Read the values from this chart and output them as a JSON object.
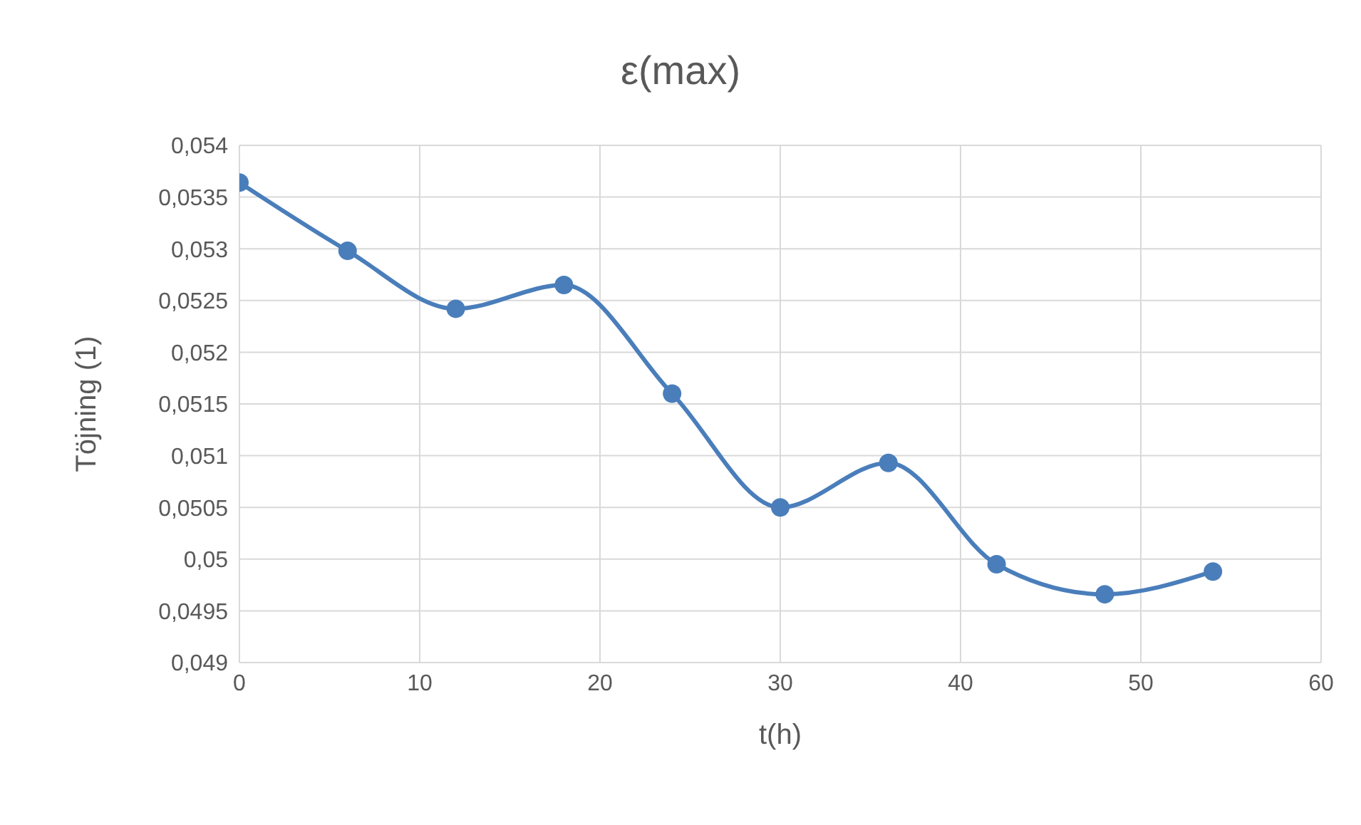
{
  "chart_data": {
    "type": "line",
    "title": "ε(max)",
    "xlabel": "t(h)",
    "ylabel": "Töjning (1)",
    "x": [
      0,
      6,
      12,
      18,
      24,
      30,
      36,
      42,
      48,
      54
    ],
    "series": [
      {
        "color": "#4a7ebb",
        "values": [
          0.05364,
          0.05298,
          0.05242,
          0.05265,
          0.0516,
          0.0505,
          0.05093,
          0.04995,
          0.04966,
          0.04988
        ]
      }
    ],
    "xlim": [
      0,
      60
    ],
    "xticks": [
      0,
      10,
      20,
      30,
      40,
      50,
      60
    ],
    "ylim": [
      0.049,
      0.054
    ],
    "yticks": [
      {
        "value": 0.049,
        "label": "0,049"
      },
      {
        "value": 0.0495,
        "label": "0,0495"
      },
      {
        "value": 0.05,
        "label": "0,05"
      },
      {
        "value": 0.0505,
        "label": "0,0505"
      },
      {
        "value": 0.051,
        "label": "0,051"
      },
      {
        "value": 0.0515,
        "label": "0,0515"
      },
      {
        "value": 0.052,
        "label": "0,052"
      },
      {
        "value": 0.0525,
        "label": "0,0525"
      },
      {
        "value": 0.053,
        "label": "0,053"
      },
      {
        "value": 0.0535,
        "label": "0,0535"
      },
      {
        "value": 0.054,
        "label": "0,054"
      }
    ],
    "grid": true,
    "marker": "circle",
    "line_style": "solid"
  }
}
